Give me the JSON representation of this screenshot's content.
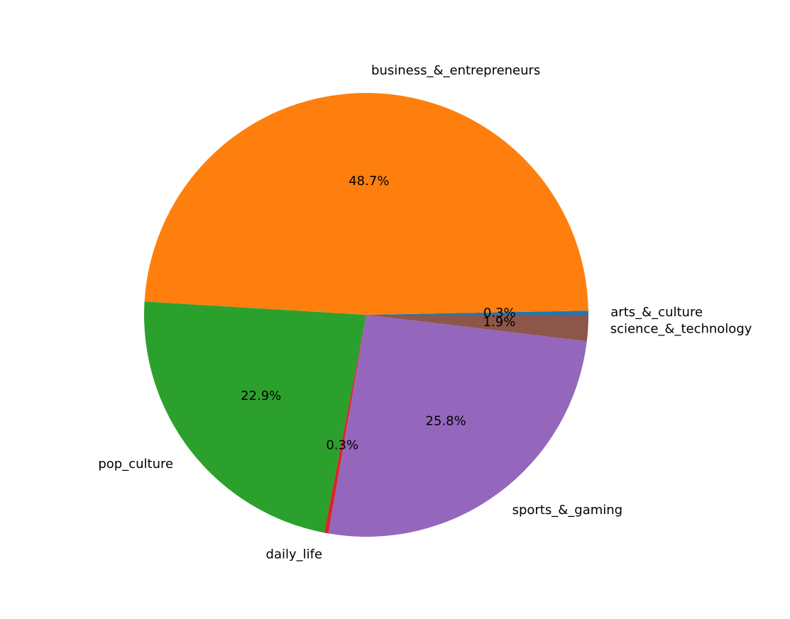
{
  "chart_data": {
    "type": "pie",
    "title": "",
    "start_angle_deg": 0,
    "counterclockwise": true,
    "slices": [
      {
        "label": "arts_&_culture",
        "value": 0.3,
        "pct_label": "0.3%",
        "color": "#1f77b4"
      },
      {
        "label": "business_&_entrepreneurs",
        "value": 48.7,
        "pct_label": "48.7%",
        "color": "#ff7f0e"
      },
      {
        "label": "pop_culture",
        "value": 22.9,
        "pct_label": "22.9%",
        "color": "#2ca02c"
      },
      {
        "label": "daily_life",
        "value": 0.3,
        "pct_label": "0.3%",
        "color": "#d62728"
      },
      {
        "label": "sports_&_gaming",
        "value": 25.8,
        "pct_label": "25.8%",
        "color": "#9467bd"
      },
      {
        "label": "science_&_technology",
        "value": 1.9,
        "pct_label": "1.9%",
        "color": "#8c564b"
      }
    ]
  }
}
